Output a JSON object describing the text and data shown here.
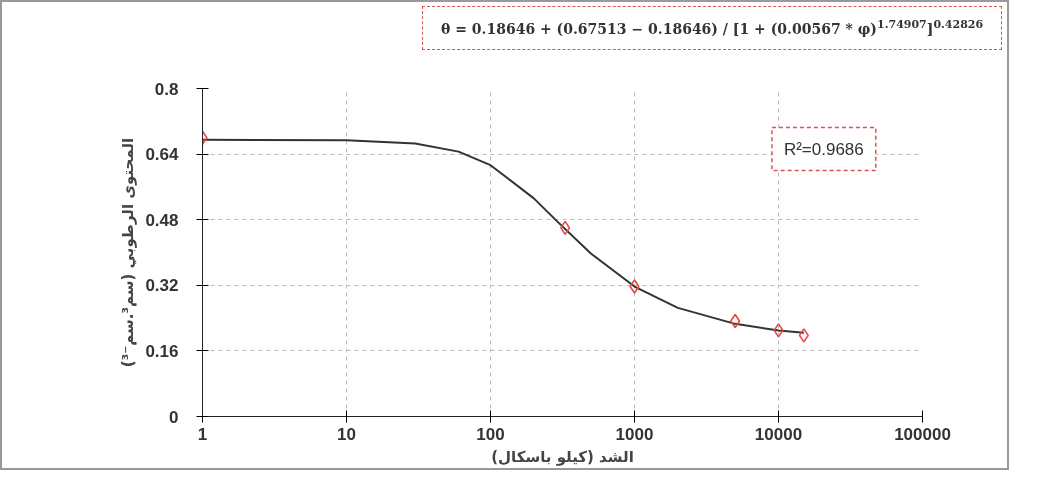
{
  "chart_data": {
    "type": "scatter",
    "xlabel": "الشد (كيلو باسكال)",
    "ylabel": "المحتوى الرطوبي (سم³.سم⁻³)",
    "log": "x",
    "grid": true,
    "xlim": [
      1,
      100000
    ],
    "xticks": [
      1,
      10,
      100,
      1000,
      10000,
      100000
    ],
    "ylim": [
      0,
      0.8
    ],
    "yticks": [
      0,
      0.16,
      0.32,
      0.48,
      0.64,
      0.8
    ],
    "series": [
      {
        "type": "line",
        "color": "#333333",
        "marker": "none",
        "line_style": "solid",
        "x": [
          1,
          10,
          30,
          60,
          100,
          200,
          300,
          500,
          1000,
          2000,
          5000,
          10000,
          15000
        ],
        "values": [
          0.675,
          0.674,
          0.666,
          0.646,
          0.613,
          0.532,
          0.471,
          0.397,
          0.317,
          0.265,
          0.226,
          0.21,
          0.204
        ]
      },
      {
        "color": "#e8473f",
        "marker": "diamond",
        "x": [
          1,
          330,
          1000,
          5000,
          10000,
          15000
        ],
        "values": [
          0.68,
          0.46,
          0.317,
          0.233,
          0.21,
          0.198
        ]
      }
    ],
    "annotations": [
      "θ = 0.18646 + (0.67513 − 0.18646) / [1 + (0.00567 * φ)$^{1.74907}$]$^{0.42826}$",
      "R²=0.9686"
    ]
  }
}
